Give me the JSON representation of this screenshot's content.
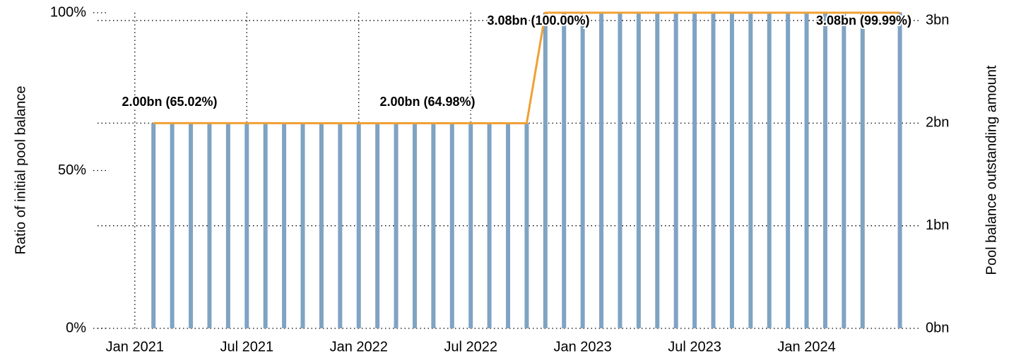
{
  "chart_data": {
    "type": "bar_line",
    "y_label": "Ratio of initial pool balance",
    "y2_label": "Pool balance outstanding amount",
    "x": [
      "2021-02",
      "2021-03",
      "2021-04",
      "2021-05",
      "2021-06",
      "2021-07",
      "2021-08",
      "2021-09",
      "2021-10",
      "2021-11",
      "2021-12",
      "2022-01",
      "2022-02",
      "2022-03",
      "2022-04",
      "2022-05",
      "2022-06",
      "2022-07",
      "2022-08",
      "2022-09",
      "2022-10",
      "2022-11",
      "2022-12",
      "2023-01",
      "2023-02",
      "2023-03",
      "2023-04",
      "2023-05",
      "2023-06",
      "2023-07",
      "2023-08",
      "2023-09",
      "2023-10",
      "2023-11",
      "2023-12",
      "2024-01",
      "2024-02",
      "2024-03",
      "2024-04",
      "2024-06"
    ],
    "xlim": [
      "2020-11",
      "2024-07"
    ],
    "xticks": [
      {
        "value": "2021-01",
        "label": "Jan 2021"
      },
      {
        "value": "2021-07",
        "label": "Jul 2021"
      },
      {
        "value": "2022-01",
        "label": "Jan 2022"
      },
      {
        "value": "2022-07",
        "label": "Jul 2022"
      },
      {
        "value": "2023-01",
        "label": "Jan 2023"
      },
      {
        "value": "2023-07",
        "label": "Jul 2023"
      },
      {
        "value": "2024-01",
        "label": "Jan 2024"
      }
    ],
    "series": [
      {
        "name": "Pool balance outstanding amount",
        "kind": "bar",
        "axis": "y2",
        "color": "#7fa3c3",
        "values": [
          2.0,
          2.0,
          2.0,
          2.0,
          2.0,
          2.0,
          2.0,
          2.0,
          2.0,
          2.0,
          2.0,
          2.0,
          2.0,
          2.0,
          2.0,
          2.0,
          2.0,
          2.0,
          2.0,
          2.0,
          2.0,
          3.08,
          3.08,
          3.08,
          3.08,
          3.08,
          3.08,
          3.08,
          3.08,
          3.08,
          3.08,
          3.08,
          3.08,
          3.08,
          3.08,
          3.08,
          3.08,
          3.08,
          3.08,
          3.08
        ]
      },
      {
        "name": "Ratio of initial pool balance",
        "kind": "line",
        "axis": "y",
        "color": "#f0a035",
        "values": [
          65.02,
          65.02,
          65.02,
          65.01,
          65.01,
          65.01,
          65.01,
          65.0,
          65.0,
          65.0,
          65.0,
          65.0,
          65.0,
          64.99,
          64.99,
          64.99,
          64.99,
          64.99,
          64.98,
          64.98,
          64.98,
          100.0,
          100.0,
          100.0,
          100.0,
          100.0,
          100.0,
          100.0,
          100.0,
          100.0,
          100.0,
          100.0,
          100.0,
          100.0,
          100.0,
          100.0,
          100.0,
          100.0,
          99.99,
          99.99
        ]
      }
    ],
    "ylim": [
      0,
      100
    ],
    "yticks": [
      {
        "value": 0,
        "label": "0%"
      },
      {
        "value": 50,
        "label": "50%"
      },
      {
        "value": 100,
        "label": "100%"
      }
    ],
    "y2lim": [
      0,
      3.076
    ],
    "y2ticks": [
      {
        "value": 0,
        "label": "0bn"
      },
      {
        "value": 1,
        "label": "1bn"
      },
      {
        "value": 2,
        "label": "2bn"
      },
      {
        "value": 3,
        "label": "3bn"
      }
    ],
    "annotations": [
      "2.00bn (65.02%)",
      "2.00bn (64.98%)",
      "3.08bn (100.00%)",
      "3.08bn (99.99%)"
    ],
    "grid": true
  }
}
